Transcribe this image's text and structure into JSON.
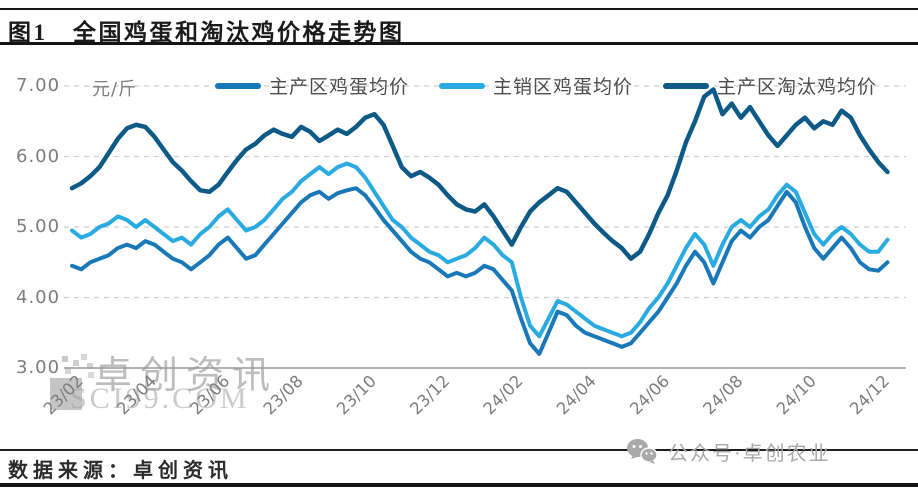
{
  "header": {
    "title": "图1　全国鸡蛋和淘汰鸡价格走势图"
  },
  "chart_data": {
    "type": "line",
    "title": "全国鸡蛋和淘汰鸡价格走势图",
    "unit": "元/斤",
    "ylim": [
      3.0,
      7.0
    ],
    "ytick_values": [
      7,
      6,
      5,
      4,
      3
    ],
    "ytick_labels": [
      "7.00",
      "6.00",
      "5.00",
      "4.00",
      "3.00"
    ],
    "x_tick_labels": [
      "23/02",
      "23/04",
      "23/06",
      "23/08",
      "23/10",
      "23/12",
      "24/02",
      "24/04",
      "24/06",
      "24/08",
      "24/10",
      "24/12"
    ],
    "points_per_tick": 8,
    "grid": "horizontal-dashed",
    "legend_position": "top",
    "series": [
      {
        "name": "主产区鸡蛋均价",
        "color": "#1878b8",
        "width": 4,
        "values": [
          4.45,
          4.4,
          4.5,
          4.55,
          4.6,
          4.7,
          4.75,
          4.7,
          4.8,
          4.75,
          4.65,
          4.55,
          4.5,
          4.4,
          4.5,
          4.6,
          4.75,
          4.85,
          4.7,
          4.55,
          4.6,
          4.75,
          4.9,
          5.05,
          5.2,
          5.35,
          5.45,
          5.5,
          5.4,
          5.48,
          5.52,
          5.55,
          5.45,
          5.28,
          5.1,
          4.95,
          4.8,
          4.65,
          4.55,
          4.5,
          4.4,
          4.3,
          4.35,
          4.3,
          4.35,
          4.45,
          4.4,
          4.25,
          4.1,
          3.7,
          3.35,
          3.2,
          3.5,
          3.8,
          3.75,
          3.6,
          3.5,
          3.45,
          3.4,
          3.35,
          3.3,
          3.35,
          3.5,
          3.65,
          3.8,
          4.0,
          4.2,
          4.45,
          4.65,
          4.5,
          4.2,
          4.5,
          4.8,
          4.95,
          4.85,
          5.0,
          5.1,
          5.3,
          5.5,
          5.35,
          5.0,
          4.7,
          4.55,
          4.7,
          4.85,
          4.7,
          4.5,
          4.4,
          4.38,
          4.5
        ]
      },
      {
        "name": "主销区鸡蛋均价",
        "color": "#29abe2",
        "width": 4,
        "values": [
          4.95,
          4.85,
          4.9,
          5.0,
          5.05,
          5.15,
          5.1,
          5.0,
          5.1,
          5.0,
          4.9,
          4.8,
          4.85,
          4.75,
          4.9,
          5.0,
          5.15,
          5.25,
          5.1,
          4.95,
          5.0,
          5.1,
          5.25,
          5.4,
          5.5,
          5.65,
          5.75,
          5.85,
          5.75,
          5.85,
          5.9,
          5.85,
          5.7,
          5.5,
          5.3,
          5.1,
          5.0,
          4.85,
          4.75,
          4.65,
          4.6,
          4.5,
          4.55,
          4.6,
          4.7,
          4.85,
          4.75,
          4.6,
          4.5,
          4.0,
          3.6,
          3.45,
          3.7,
          3.95,
          3.9,
          3.8,
          3.7,
          3.6,
          3.55,
          3.5,
          3.45,
          3.5,
          3.65,
          3.85,
          4.0,
          4.2,
          4.45,
          4.7,
          4.9,
          4.75,
          4.45,
          4.75,
          5.0,
          5.1,
          5.0,
          5.15,
          5.25,
          5.45,
          5.6,
          5.5,
          5.2,
          4.9,
          4.75,
          4.9,
          5.0,
          4.9,
          4.75,
          4.65,
          4.65,
          4.82
        ]
      },
      {
        "name": "主产区淘汰鸡均价",
        "color": "#0e5a86",
        "width": 4.5,
        "values": [
          5.55,
          5.62,
          5.72,
          5.85,
          6.05,
          6.25,
          6.4,
          6.45,
          6.42,
          6.28,
          6.1,
          5.92,
          5.8,
          5.65,
          5.52,
          5.5,
          5.6,
          5.78,
          5.95,
          6.1,
          6.18,
          6.3,
          6.38,
          6.32,
          6.28,
          6.42,
          6.35,
          6.22,
          6.3,
          6.38,
          6.32,
          6.42,
          6.55,
          6.6,
          6.45,
          6.15,
          5.85,
          5.72,
          5.78,
          5.7,
          5.6,
          5.45,
          5.32,
          5.25,
          5.22,
          5.32,
          5.15,
          4.95,
          4.75,
          5.0,
          5.22,
          5.35,
          5.45,
          5.55,
          5.5,
          5.35,
          5.2,
          5.05,
          4.92,
          4.8,
          4.7,
          4.55,
          4.65,
          4.9,
          5.2,
          5.45,
          5.8,
          6.2,
          6.5,
          6.85,
          6.95,
          6.6,
          6.75,
          6.55,
          6.7,
          6.5,
          6.3,
          6.15,
          6.3,
          6.45,
          6.55,
          6.4,
          6.5,
          6.45,
          6.65,
          6.55,
          6.3,
          6.1,
          5.92,
          5.78
        ]
      }
    ]
  },
  "watermark": {
    "line1": "卓创资讯",
    "line2": "SCI99.COM"
  },
  "footer": {
    "source": "数据来源：卓创资讯",
    "social": "公众号·卓创农业",
    "social_icon": "wechat-icon"
  },
  "colors": {
    "egg_main_area": "#1878b8",
    "egg_sales_area": "#29abe2",
    "culled_chicken": "#0e5a86",
    "axis_text": "#7d7d7d",
    "rule_black": "#141414",
    "watermark_gray": "#919191"
  }
}
